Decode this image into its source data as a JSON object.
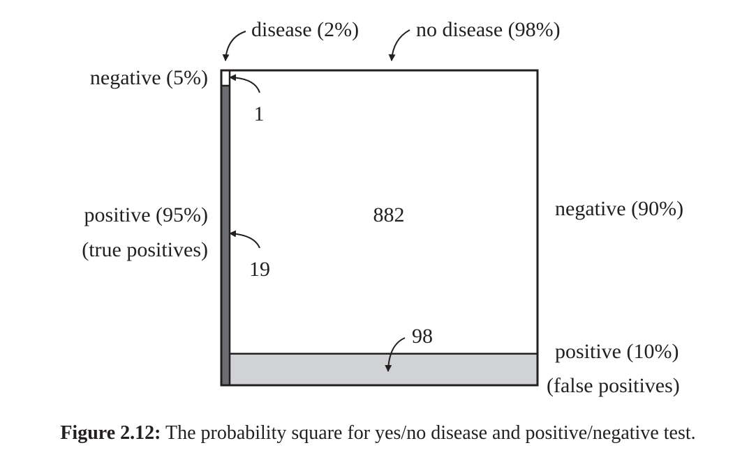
{
  "labels": {
    "disease": "disease (2%)",
    "no_disease": "no disease (98%)",
    "left_negative": "negative (5%)",
    "count_diseased_negative": "1",
    "left_positive": "positive (95%)",
    "left_positive_note": "(true positives)",
    "count_true_positive": "19",
    "count_healthy_negative": "882",
    "right_negative": "negative (90%)",
    "count_false_positive": "98",
    "right_positive": "positive (10%)",
    "right_positive_note": "(false  positives)"
  },
  "caption": {
    "number": "Figure 2.12:",
    "text": "The probability square for yes/no disease and positive/negative test."
  },
  "proportions": {
    "disease_share": 0.02,
    "no_disease_share": 0.98,
    "diseased_negative_share": 0.05,
    "diseased_positive_share": 0.95,
    "healthy_negative_share": 0.9,
    "healthy_positive_share": 0.1
  },
  "colors": {
    "line": "#231f20",
    "true_positive_fill": "#6d6e71",
    "false_positive_fill": "#d1d2d4",
    "background": "#ffffff"
  }
}
